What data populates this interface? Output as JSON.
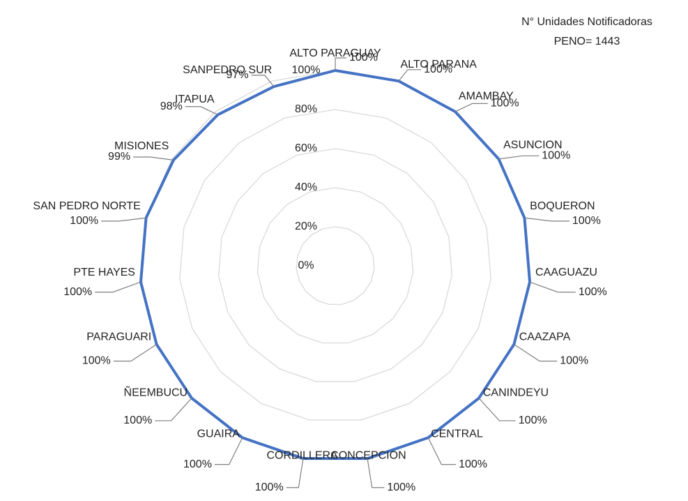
{
  "chart_data": {
    "type": "radar",
    "title": "N° Unidades Notificadoras",
    "subtitle": "PENO= 1443",
    "categories": [
      "ALTO PARAGUAY",
      "ALTO PARANA",
      "AMAMBAY",
      "ASUNCION",
      "BOQUERON",
      "CAAGUAZU",
      "CAAZAPA",
      "CANINDEYU",
      "CENTRAL",
      "CONCEPCION",
      "CORDILLERA",
      "GUAIRA",
      "ÑEEMBUCU",
      "PARAGUARI",
      "PTE HAYES",
      "SAN PEDRO NORTE",
      "MISIONES",
      "ITAPUA",
      "SANPEDRO SUR"
    ],
    "values": [
      100,
      100,
      100,
      100,
      100,
      100,
      100,
      100,
      100,
      100,
      100,
      100,
      100,
      100,
      100,
      100,
      99,
      98,
      97
    ],
    "value_labels": [
      "100%",
      "100%",
      "100%",
      "100%",
      "100%",
      "100%",
      "100%",
      "100%",
      "100%",
      "100%",
      "100%",
      "100%",
      "100%",
      "100%",
      "100%",
      "100%",
      "99%",
      "98%",
      "97%"
    ],
    "color": "#4472c4",
    "ylim": [
      0,
      100
    ],
    "yticks": [
      {
        "value": 0,
        "label": "0%"
      },
      {
        "value": 20,
        "label": "20%"
      },
      {
        "value": 40,
        "label": "40%"
      },
      {
        "value": 60,
        "label": "60%"
      },
      {
        "value": 80,
        "label": "80%"
      },
      {
        "value": 100,
        "label": "100%"
      }
    ],
    "grid": true
  }
}
